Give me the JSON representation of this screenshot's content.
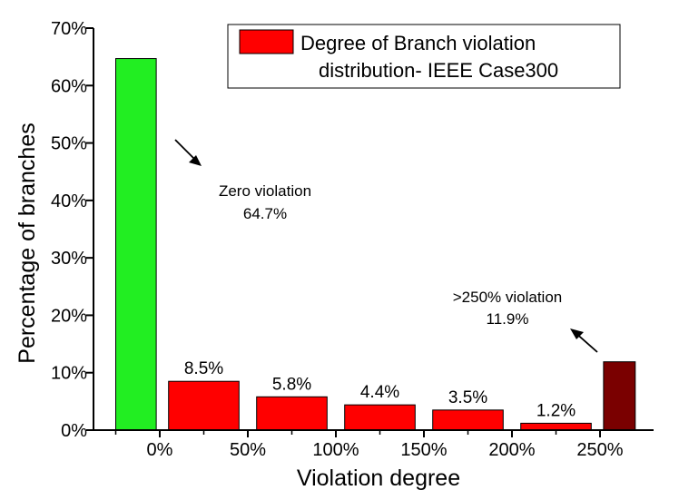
{
  "chart_data": {
    "type": "bar",
    "title": "",
    "xlabel": "Violation degree",
    "ylabel": "Percentage of branches",
    "ylim": [
      0,
      70
    ],
    "y_ticks": [
      "0%",
      "10%",
      "20%",
      "30%",
      "40%",
      "50%",
      "60%",
      "70%"
    ],
    "x_ticks": [
      "0%",
      "50%",
      "100%",
      "150%",
      "200%",
      "250%"
    ],
    "legend": {
      "line1": "Degree of Branch violation",
      "line2": "distribution- IEEE Case300",
      "placement": "top-right"
    },
    "series": [
      {
        "name": "Degree of Branch violation distribution- IEEE Case300",
        "bars": [
          {
            "from": -25,
            "to": -2,
            "value": 64.7,
            "color": "#22ee22",
            "label": ""
          },
          {
            "from": 5,
            "to": 45,
            "value": 8.5,
            "color": "#ff0000",
            "label": "8.5%"
          },
          {
            "from": 55,
            "to": 95,
            "value": 5.8,
            "color": "#ff0000",
            "label": "5.8%"
          },
          {
            "from": 105,
            "to": 145,
            "value": 4.4,
            "color": "#ff0000",
            "label": "4.4%"
          },
          {
            "from": 155,
            "to": 195,
            "value": 3.5,
            "color": "#ff0000",
            "label": "3.5%"
          },
          {
            "from": 205,
            "to": 245,
            "value": 1.2,
            "color": "#ff0000",
            "label": "1.2%"
          },
          {
            "from": 252,
            "to": 270,
            "value": 11.9,
            "color": "#7a0000",
            "label": ""
          }
        ]
      }
    ],
    "annotations": [
      {
        "line1": "Zero violation",
        "line2": "64.7%"
      },
      {
        "line1": ">250% violation",
        "line2": "11.9%"
      }
    ],
    "grid": false
  }
}
